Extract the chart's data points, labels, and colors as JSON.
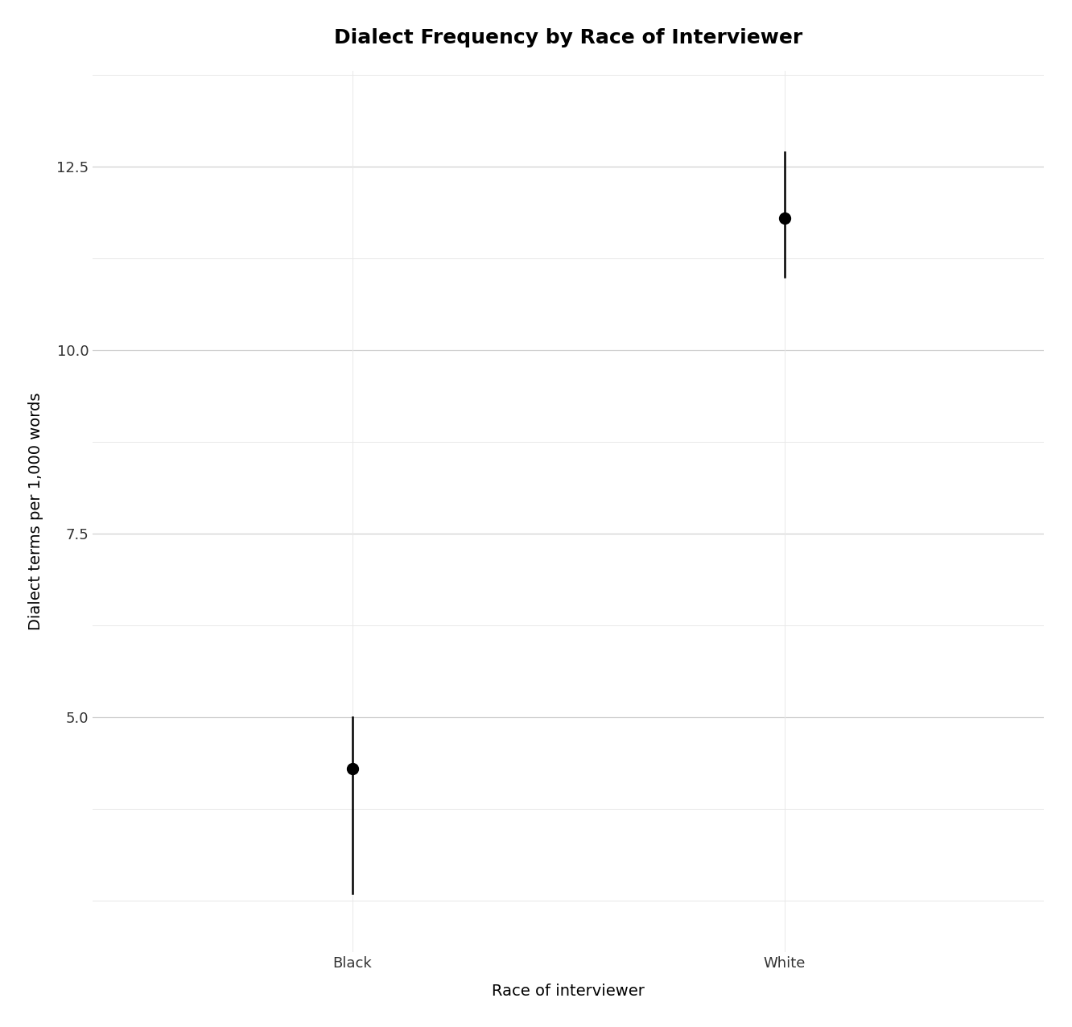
{
  "title": "Dialect Frequency by Race of Interviewer",
  "xlabel": "Race of interviewer",
  "ylabel": "Dialect terms per 1,000 words",
  "categories": [
    "Black",
    "White"
  ],
  "x_positions": [
    1,
    2
  ],
  "means": [
    4.3,
    11.8
  ],
  "ci_lower": [
    2.6,
    11.0
  ],
  "ci_upper": [
    5.0,
    12.7
  ],
  "ylim": [
    1.8,
    13.8
  ],
  "yticks_major": [
    5.0,
    7.5,
    10.0,
    12.5
  ],
  "yticks_minor": [
    2.5,
    3.75,
    5.0,
    6.25,
    7.5,
    8.75,
    10.0,
    11.25,
    12.5,
    13.75
  ],
  "xtick_positions": [
    1,
    2
  ],
  "xlim": [
    0.4,
    2.6
  ],
  "point_color": "#000000",
  "line_color": "#000000",
  "major_grid_color": "#d0d0d0",
  "minor_grid_color": "#e8e8e8",
  "background_color": "#ffffff",
  "point_size": 100,
  "line_width": 1.8,
  "title_fontsize": 18,
  "label_fontsize": 14,
  "tick_fontsize": 13
}
